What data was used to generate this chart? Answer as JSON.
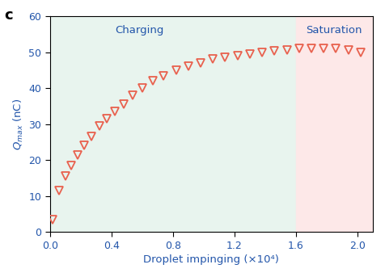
{
  "title_label": "c",
  "xlabel": "Droplet impinging (×10⁴)",
  "ylabel": "Q_{max} (nC)",
  "xlim": [
    0,
    2.1
  ],
  "ylim": [
    0,
    60
  ],
  "xticks": [
    0.0,
    0.4,
    0.8,
    1.2,
    1.6,
    2.0
  ],
  "yticks": [
    0,
    10,
    20,
    30,
    40,
    50,
    60
  ],
  "charging_region_color": "#e8f4ee",
  "saturation_region_color": "#fde8e8",
  "charging_boundary": 1.6,
  "marker_color": "#e8614e",
  "marker_size": 7,
  "axis_label_color": "#2255aa",
  "tick_label_color": "#2255aa",
  "charging_label": "Charging",
  "saturation_label": "Saturation",
  "region_label_color": "#2255aa",
  "x_data": [
    0.02,
    0.06,
    0.1,
    0.14,
    0.18,
    0.22,
    0.27,
    0.32,
    0.37,
    0.42,
    0.48,
    0.54,
    0.6,
    0.67,
    0.74,
    0.82,
    0.9,
    0.98,
    1.06,
    1.14,
    1.22,
    1.3,
    1.38,
    1.46,
    1.54,
    1.62,
    1.7,
    1.78,
    1.86,
    1.94,
    2.02
  ],
  "y_data": [
    3.5,
    11.5,
    15.5,
    18.5,
    21.5,
    24.0,
    26.5,
    29.5,
    31.5,
    33.5,
    35.5,
    38.0,
    40.0,
    42.0,
    43.5,
    45.0,
    46.0,
    47.0,
    48.0,
    48.5,
    49.0,
    49.5,
    50.0,
    50.3,
    50.5,
    51.0,
    51.0,
    51.0,
    51.0,
    50.5,
    50.0
  ]
}
